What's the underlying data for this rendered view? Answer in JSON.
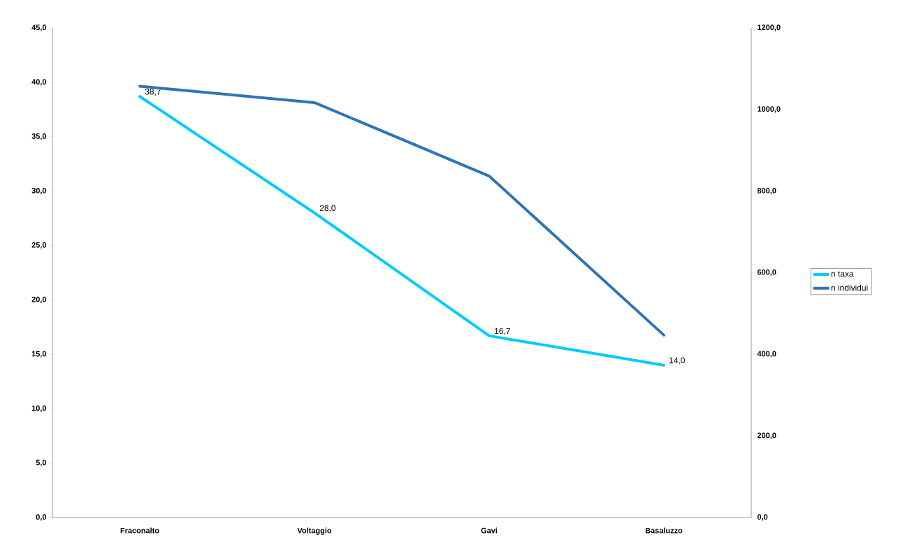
{
  "chart_data": {
    "type": "line",
    "categories": [
      "Fraconalto",
      "Voltaggio",
      "Gavi",
      "Basaluzzo"
    ],
    "series": [
      {
        "name": "n taxa",
        "color": "#00ccff",
        "values": [
          38.7,
          28.0,
          16.7,
          14.0
        ],
        "value_labels": [
          "38,7",
          "28,0",
          "16,7",
          "14,0"
        ]
      },
      {
        "name": "n individui",
        "color": "#2e75b6",
        "axis": "y2",
        "values": [
          1057,
          1017,
          837,
          447
        ]
      }
    ],
    "ylim": [
      0,
      45
    ],
    "yticks": [
      {
        "value": 0,
        "label": "0,0"
      },
      {
        "value": 5,
        "label": "5,0"
      },
      {
        "value": 10,
        "label": "10,0"
      },
      {
        "value": 15,
        "label": "15,0"
      },
      {
        "value": 20,
        "label": "20,0"
      },
      {
        "value": 25,
        "label": "25,0"
      },
      {
        "value": 30,
        "label": "30,0"
      },
      {
        "value": 35,
        "label": "35,0"
      },
      {
        "value": 40,
        "label": "40,0"
      },
      {
        "value": 45,
        "label": "45,0"
      }
    ],
    "y2lim": [
      0,
      1200
    ],
    "y2ticks": [
      {
        "value": 0,
        "label": "0,0"
      },
      {
        "value": 200,
        "label": "200,0"
      },
      {
        "value": 400,
        "label": "400,0"
      },
      {
        "value": 600,
        "label": "600,0"
      },
      {
        "value": 800,
        "label": "800,0"
      },
      {
        "value": 1000,
        "label": "1000,0"
      },
      {
        "value": 1200,
        "label": "1200,0"
      }
    ],
    "legend": "right",
    "grid": false,
    "marker": "none",
    "line_style": "solid"
  }
}
